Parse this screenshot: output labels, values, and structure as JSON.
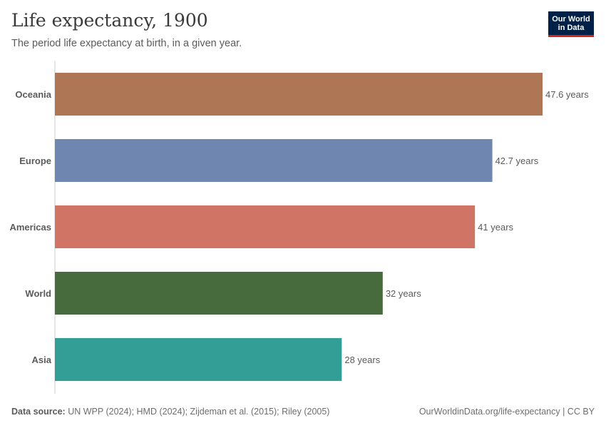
{
  "header": {
    "title": "Life expectancy, 1900",
    "subtitle": "The period life expectancy at birth, in a given year."
  },
  "logo": {
    "line1": "Our World",
    "line2": "in Data"
  },
  "footer": {
    "source_label": "Data source:",
    "source_text": " UN WPP (2024); HMD (2024); Zijdeman et al. (2015); Riley (2005)",
    "link_text": "OurWorldinData.org/life-expectancy | CC BY"
  },
  "chart_data": {
    "type": "bar",
    "orientation": "horizontal",
    "title": "Life expectancy, 1900",
    "subtitle": "The period life expectancy at birth, in a given year.",
    "categories": [
      "Oceania",
      "Europe",
      "Americas",
      "World",
      "Asia"
    ],
    "values": [
      47.6,
      42.7,
      41,
      32,
      28
    ],
    "value_labels": [
      "47.6 years",
      "42.7 years",
      "41 years",
      "32 years",
      "28 years"
    ],
    "colors": [
      "#ae7654",
      "#6f86b0",
      "#d07466",
      "#486b3e",
      "#339e96"
    ],
    "xlim": [
      0,
      47.6
    ],
    "grid": false
  }
}
